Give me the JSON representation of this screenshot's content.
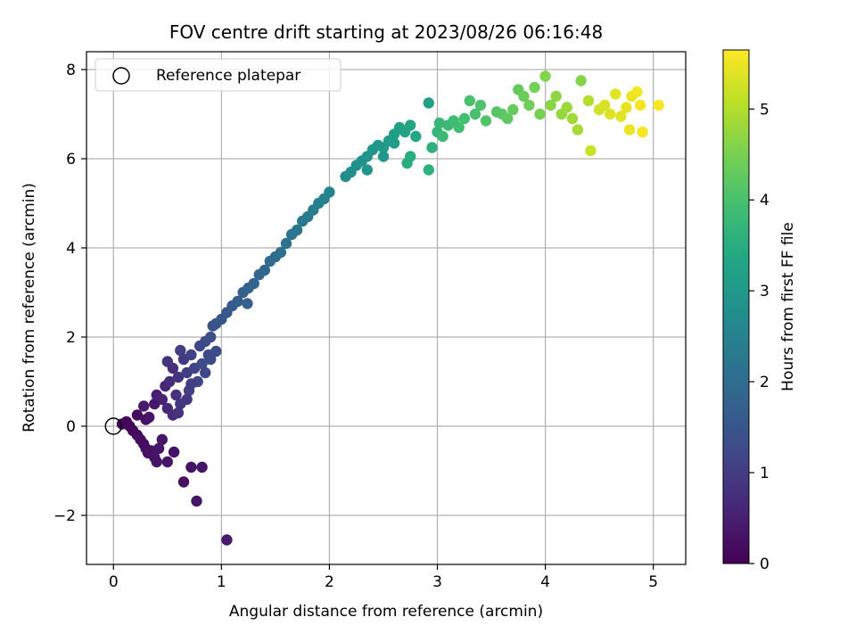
{
  "chart_data": {
    "type": "scatter",
    "title": "FOV centre drift starting at 2023/08/26 06:16:48",
    "xlabel": "Angular distance from reference (arcmin)",
    "ylabel": "Rotation from reference (arcmin)",
    "xlim": [
      -0.25,
      5.3
    ],
    "ylim": [
      -3.1,
      8.4
    ],
    "xticks": [
      0,
      1,
      2,
      3,
      4,
      5
    ],
    "xtick_labels": [
      "0",
      "1",
      "2",
      "3",
      "4",
      "5"
    ],
    "yticks": [
      -2,
      0,
      2,
      4,
      6,
      8
    ],
    "ytick_labels": [
      "−2",
      "0",
      "2",
      "4",
      "6",
      "8"
    ],
    "grid": true,
    "legend": {
      "position": "top-left",
      "entries": [
        {
          "label": "Reference platepar",
          "marker": "open-circle"
        }
      ]
    },
    "reference_point": {
      "x": 0,
      "y": 0
    },
    "colorbar": {
      "label": "Hours from first FF file",
      "colormap": "viridis",
      "range": [
        0,
        5.65
      ],
      "ticks": [
        0,
        1,
        2,
        3,
        4,
        5
      ],
      "tick_labels": [
        "0",
        "1",
        "2",
        "3",
        "4",
        "5"
      ]
    },
    "series": [
      {
        "fields": [
          "x",
          "y",
          "hours"
        ],
        "points": [
          [
            0.08,
            0.05,
            0.05
          ],
          [
            0.12,
            0.1,
            0.08
          ],
          [
            0.15,
            0.0,
            0.1
          ],
          [
            0.18,
            -0.1,
            0.12
          ],
          [
            0.22,
            -0.2,
            0.15
          ],
          [
            0.25,
            -0.3,
            0.18
          ],
          [
            0.28,
            -0.4,
            0.2
          ],
          [
            0.3,
            -0.5,
            0.22
          ],
          [
            0.32,
            -0.6,
            0.25
          ],
          [
            0.35,
            -0.55,
            0.28
          ],
          [
            0.38,
            -0.7,
            0.3
          ],
          [
            0.4,
            -0.8,
            0.3
          ],
          [
            0.42,
            -0.5,
            0.32
          ],
          [
            0.45,
            -0.3,
            0.35
          ],
          [
            0.22,
            0.25,
            0.2
          ],
          [
            0.3,
            0.15,
            0.25
          ],
          [
            0.33,
            0.2,
            0.3
          ],
          [
            0.38,
            0.5,
            0.35
          ],
          [
            0.28,
            0.45,
            0.4
          ],
          [
            0.5,
            -0.8,
            0.35
          ],
          [
            0.56,
            -0.58,
            0.3
          ],
          [
            0.65,
            -1.25,
            0.25
          ],
          [
            0.72,
            -0.92,
            0.3
          ],
          [
            0.82,
            -0.92,
            0.35
          ],
          [
            0.77,
            -1.68,
            0.3
          ],
          [
            1.05,
            -2.55,
            0.4
          ],
          [
            0.4,
            0.7,
            0.5
          ],
          [
            0.45,
            0.6,
            0.55
          ],
          [
            0.48,
            0.9,
            0.6
          ],
          [
            0.5,
            0.4,
            0.65
          ],
          [
            0.52,
            1.0,
            0.7
          ],
          [
            0.55,
            1.3,
            0.75
          ],
          [
            0.58,
            0.7,
            0.8
          ],
          [
            0.6,
            1.1,
            0.85
          ],
          [
            0.62,
            0.5,
            0.9
          ],
          [
            0.65,
            1.5,
            0.95
          ],
          [
            0.68,
            1.2,
            1.0
          ],
          [
            0.7,
            0.8,
            1.05
          ],
          [
            0.72,
            1.6,
            1.1
          ],
          [
            0.75,
            1.3,
            1.15
          ],
          [
            0.78,
            1.0,
            1.2
          ],
          [
            0.8,
            1.8,
            1.2
          ],
          [
            0.82,
            1.4,
            1.25
          ],
          [
            0.85,
            1.9,
            1.3
          ],
          [
            0.88,
            1.6,
            1.3
          ],
          [
            0.9,
            2.0,
            1.35
          ],
          [
            0.55,
            0.25,
            0.7
          ],
          [
            0.6,
            0.3,
            0.8
          ],
          [
            0.68,
            0.6,
            0.9
          ],
          [
            0.72,
            0.95,
            1.0
          ],
          [
            0.5,
            1.45,
            0.85
          ],
          [
            0.62,
            1.7,
            1.0
          ],
          [
            0.95,
            1.68,
            1.3
          ],
          [
            0.9,
            1.5,
            1.25
          ],
          [
            0.92,
            2.25,
            1.4
          ],
          [
            0.85,
            1.2,
            1.2
          ],
          [
            0.95,
            2.3,
            1.45
          ],
          [
            1.0,
            2.4,
            1.5
          ],
          [
            1.05,
            2.55,
            1.55
          ],
          [
            1.1,
            2.7,
            1.6
          ],
          [
            1.15,
            2.8,
            1.65
          ],
          [
            1.2,
            3.0,
            1.7
          ],
          [
            1.25,
            3.1,
            1.75
          ],
          [
            1.24,
            2.75,
            1.75
          ],
          [
            1.3,
            3.2,
            1.8
          ],
          [
            1.35,
            3.4,
            1.85
          ],
          [
            1.4,
            3.5,
            1.9
          ],
          [
            1.45,
            3.7,
            1.95
          ],
          [
            1.5,
            3.8,
            2.0
          ],
          [
            1.55,
            3.9,
            2.05
          ],
          [
            1.6,
            4.1,
            2.1
          ],
          [
            1.65,
            4.3,
            2.15
          ],
          [
            1.7,
            4.4,
            2.2
          ],
          [
            1.75,
            4.6,
            2.25
          ],
          [
            1.8,
            4.7,
            2.3
          ],
          [
            1.85,
            4.85,
            2.35
          ],
          [
            1.9,
            5.0,
            2.45
          ],
          [
            1.95,
            5.1,
            2.5
          ],
          [
            2.0,
            5.25,
            2.55
          ],
          [
            2.15,
            5.6,
            2.7
          ],
          [
            2.2,
            5.7,
            2.75
          ],
          [
            2.25,
            5.85,
            2.8
          ],
          [
            2.3,
            5.95,
            2.85
          ],
          [
            2.35,
            6.05,
            2.9
          ],
          [
            2.4,
            6.2,
            2.95
          ],
          [
            2.45,
            6.3,
            3.0
          ],
          [
            2.5,
            6.25,
            3.05
          ],
          [
            2.55,
            6.4,
            3.1
          ],
          [
            2.6,
            6.55,
            3.15
          ],
          [
            2.65,
            6.7,
            3.2
          ],
          [
            2.7,
            6.6,
            3.25
          ],
          [
            2.75,
            6.75,
            3.3
          ],
          [
            2.8,
            6.5,
            3.35
          ],
          [
            2.92,
            7.25,
            3.2
          ],
          [
            2.35,
            5.75,
            2.9
          ],
          [
            2.5,
            6.05,
            3.0
          ],
          [
            2.6,
            6.35,
            3.1
          ],
          [
            2.75,
            6.05,
            3.5
          ],
          [
            2.72,
            5.9,
            3.5
          ],
          [
            2.92,
            5.75,
            3.6
          ],
          [
            2.95,
            6.25,
            3.6
          ],
          [
            3.0,
            6.6,
            3.7
          ],
          [
            3.02,
            6.8,
            3.75
          ],
          [
            3.05,
            6.5,
            3.8
          ],
          [
            3.1,
            6.75,
            3.8
          ],
          [
            3.15,
            6.85,
            3.85
          ],
          [
            3.2,
            6.7,
            3.9
          ],
          [
            3.25,
            6.9,
            3.95
          ],
          [
            3.3,
            7.3,
            4.0
          ],
          [
            3.35,
            7.0,
            4.0
          ],
          [
            3.4,
            7.2,
            4.05
          ],
          [
            3.45,
            6.85,
            4.1
          ],
          [
            3.55,
            7.05,
            4.15
          ],
          [
            3.6,
            7.0,
            4.2
          ],
          [
            3.65,
            6.9,
            4.25
          ],
          [
            3.7,
            7.1,
            4.3
          ],
          [
            3.75,
            7.55,
            4.3
          ],
          [
            3.8,
            7.4,
            4.35
          ],
          [
            3.85,
            7.2,
            4.4
          ],
          [
            3.9,
            7.6,
            4.45
          ],
          [
            3.95,
            7.0,
            4.5
          ],
          [
            4.0,
            7.85,
            4.6
          ],
          [
            4.05,
            7.2,
            4.65
          ],
          [
            4.1,
            7.4,
            4.7
          ],
          [
            4.15,
            7.0,
            4.75
          ],
          [
            4.2,
            7.15,
            4.8
          ],
          [
            4.25,
            6.9,
            4.85
          ],
          [
            4.3,
            6.65,
            4.9
          ],
          [
            4.33,
            7.75,
            4.6
          ],
          [
            4.4,
            7.3,
            5.0
          ],
          [
            4.42,
            6.18,
            5.2
          ],
          [
            4.5,
            7.1,
            5.25
          ],
          [
            4.55,
            7.2,
            5.3
          ],
          [
            4.6,
            7.0,
            5.35
          ],
          [
            4.65,
            7.45,
            5.4
          ],
          [
            4.7,
            6.95,
            5.4
          ],
          [
            4.75,
            7.15,
            5.45
          ],
          [
            4.8,
            7.4,
            5.5
          ],
          [
            4.85,
            7.5,
            5.55
          ],
          [
            4.9,
            6.6,
            5.6
          ],
          [
            4.88,
            7.2,
            5.55
          ],
          [
            5.05,
            7.2,
            5.6
          ],
          [
            4.78,
            6.65,
            5.5
          ]
        ]
      }
    ]
  }
}
